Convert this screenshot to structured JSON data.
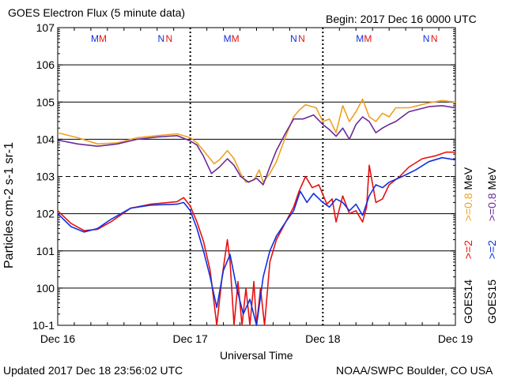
{
  "header": {
    "title": "GOES Electron Flux (5 minute data)",
    "begin": "Begin: 2017 Dec 16 0000 UTC"
  },
  "footer": {
    "updated": "Updated 2017 Dec 18 23:56:02 UTC",
    "credit": "NOAA/SWPC Boulder, CO USA"
  },
  "colors": {
    "goes14_08": "#f0a020",
    "goes15_08": "#6a2a9a",
    "goes14_2": "#e81010",
    "goes15_2": "#1030e0"
  },
  "legend": {
    "goes14": "GOES14",
    "goes15": "GOES15",
    "g14_2": ">=2",
    "g14_08": ">=0.8",
    "g15_2": ">=2",
    "g15_08": ">=0.8",
    "unit": "MeV"
  },
  "chart_data": {
    "type": "line",
    "title": "GOES Electron Flux (5 minute data)",
    "xlabel": "Universal Time",
    "ylabel": "Particles cm-2 s-1 sr-1",
    "y_scale": "log",
    "ylim": [
      0.1,
      10000000
    ],
    "y_ticks": [
      "10-1",
      "100",
      "101",
      "102",
      "103",
      "104",
      "105",
      "106",
      "107"
    ],
    "x_ticks": [
      "Dec 16",
      "Dec 17",
      "Dec 18",
      "Dec 19"
    ],
    "xlim_days": [
      0,
      3
    ],
    "threshold_line": 1000,
    "markers": {
      "M_label": "M",
      "N_label": "N",
      "M_days": [
        0.28,
        0.34,
        1.28,
        1.34,
        2.28,
        2.34
      ],
      "N_days": [
        0.78,
        0.84,
        1.78,
        1.84,
        2.78,
        2.84
      ]
    },
    "series": [
      {
        "name": "GOES14 >=0.8 MeV",
        "color": "#f0a020",
        "points": [
          [
            0,
            15000
          ],
          [
            0.15,
            11000
          ],
          [
            0.3,
            7500
          ],
          [
            0.45,
            8000
          ],
          [
            0.6,
            11000
          ],
          [
            0.75,
            12500
          ],
          [
            0.9,
            14000
          ],
          [
            1.0,
            11000
          ],
          [
            1.05,
            8000
          ],
          [
            1.1,
            5000
          ],
          [
            1.18,
            2200
          ],
          [
            1.22,
            2800
          ],
          [
            1.28,
            5000
          ],
          [
            1.33,
            3000
          ],
          [
            1.38,
            1200
          ],
          [
            1.42,
            700
          ],
          [
            1.48,
            800
          ],
          [
            1.52,
            1500
          ],
          [
            1.55,
            700
          ],
          [
            1.6,
            1200
          ],
          [
            1.65,
            2500
          ],
          [
            1.72,
            12000
          ],
          [
            1.78,
            40000
          ],
          [
            1.82,
            60000
          ],
          [
            1.87,
            85000
          ],
          [
            1.95,
            70000
          ],
          [
            2.0,
            30000
          ],
          [
            2.05,
            35000
          ],
          [
            2.1,
            15000
          ],
          [
            2.15,
            80000
          ],
          [
            2.2,
            30000
          ],
          [
            2.25,
            55000
          ],
          [
            2.3,
            120000
          ],
          [
            2.35,
            40000
          ],
          [
            2.4,
            30000
          ],
          [
            2.45,
            50000
          ],
          [
            2.5,
            40000
          ],
          [
            2.55,
            70000
          ],
          [
            2.65,
            70000
          ],
          [
            2.8,
            95000
          ],
          [
            2.9,
            110000
          ],
          [
            3.0,
            100000
          ]
        ]
      },
      {
        "name": "GOES15 >=0.8 MeV",
        "color": "#6a2a9a",
        "points": [
          [
            0,
            9500
          ],
          [
            0.15,
            7500
          ],
          [
            0.3,
            6500
          ],
          [
            0.45,
            7500
          ],
          [
            0.6,
            10000
          ],
          [
            0.75,
            11500
          ],
          [
            0.9,
            12500
          ],
          [
            1.0,
            9000
          ],
          [
            1.05,
            7000
          ],
          [
            1.1,
            3500
          ],
          [
            1.16,
            1200
          ],
          [
            1.22,
            1800
          ],
          [
            1.28,
            3000
          ],
          [
            1.33,
            2000
          ],
          [
            1.38,
            1000
          ],
          [
            1.44,
            700
          ],
          [
            1.5,
            900
          ],
          [
            1.55,
            600
          ],
          [
            1.6,
            1800
          ],
          [
            1.65,
            5000
          ],
          [
            1.72,
            15000
          ],
          [
            1.78,
            35000
          ],
          [
            1.85,
            35000
          ],
          [
            1.93,
            45000
          ],
          [
            2.0,
            25000
          ],
          [
            2.05,
            18000
          ],
          [
            2.1,
            12000
          ],
          [
            2.15,
            20000
          ],
          [
            2.2,
            10000
          ],
          [
            2.25,
            25000
          ],
          [
            2.3,
            40000
          ],
          [
            2.35,
            30000
          ],
          [
            2.4,
            15000
          ],
          [
            2.45,
            20000
          ],
          [
            2.5,
            25000
          ],
          [
            2.55,
            30000
          ],
          [
            2.65,
            55000
          ],
          [
            2.8,
            75000
          ],
          [
            2.9,
            80000
          ],
          [
            3.0,
            70000
          ]
        ]
      },
      {
        "name": "GOES14 >=2 MeV",
        "color": "#e81010",
        "points": [
          [
            0,
            120
          ],
          [
            0.1,
            55
          ],
          [
            0.2,
            35
          ],
          [
            0.3,
            38
          ],
          [
            0.4,
            60
          ],
          [
            0.55,
            140
          ],
          [
            0.7,
            180
          ],
          [
            0.9,
            210
          ],
          [
            0.95,
            270
          ],
          [
            1.0,
            160
          ],
          [
            1.05,
            60
          ],
          [
            1.1,
            18
          ],
          [
            1.15,
            3
          ],
          [
            1.2,
            0.1
          ],
          [
            1.24,
            2
          ],
          [
            1.28,
            20
          ],
          [
            1.3,
            5
          ],
          [
            1.33,
            0.1
          ],
          [
            1.36,
            1.5
          ],
          [
            1.39,
            0.1
          ],
          [
            1.42,
            1
          ],
          [
            1.45,
            0.1
          ],
          [
            1.48,
            1.5
          ],
          [
            1.5,
            0.1
          ],
          [
            1.53,
            1
          ],
          [
            1.56,
            0.1
          ],
          [
            1.6,
            5
          ],
          [
            1.65,
            20
          ],
          [
            1.72,
            60
          ],
          [
            1.78,
            150
          ],
          [
            1.82,
            400
          ],
          [
            1.87,
            1000
          ],
          [
            1.92,
            500
          ],
          [
            1.97,
            600
          ],
          [
            2.03,
            180
          ],
          [
            2.07,
            250
          ],
          [
            2.1,
            60
          ],
          [
            2.15,
            300
          ],
          [
            2.2,
            100
          ],
          [
            2.25,
            120
          ],
          [
            2.3,
            60
          ],
          [
            2.33,
            150
          ],
          [
            2.35,
            2000
          ],
          [
            2.4,
            200
          ],
          [
            2.45,
            250
          ],
          [
            2.5,
            600
          ],
          [
            2.58,
            1000
          ],
          [
            2.65,
            1800
          ],
          [
            2.75,
            3000
          ],
          [
            2.85,
            3600
          ],
          [
            2.93,
            4500
          ],
          [
            3.0,
            4500
          ]
        ]
      },
      {
        "name": "GOES15 >=2 MeV",
        "color": "#1030e0",
        "points": [
          [
            0,
            100
          ],
          [
            0.1,
            45
          ],
          [
            0.2,
            32
          ],
          [
            0.3,
            40
          ],
          [
            0.4,
            70
          ],
          [
            0.55,
            140
          ],
          [
            0.7,
            170
          ],
          [
            0.9,
            180
          ],
          [
            0.95,
            200
          ],
          [
            1.0,
            120
          ],
          [
            1.05,
            40
          ],
          [
            1.1,
            10
          ],
          [
            1.15,
            2
          ],
          [
            1.2,
            0.3
          ],
          [
            1.25,
            3
          ],
          [
            1.3,
            8
          ],
          [
            1.35,
            1
          ],
          [
            1.4,
            0.2
          ],
          [
            1.45,
            0.5
          ],
          [
            1.5,
            0.1
          ],
          [
            1.55,
            2
          ],
          [
            1.6,
            10
          ],
          [
            1.65,
            25
          ],
          [
            1.72,
            60
          ],
          [
            1.78,
            120
          ],
          [
            1.83,
            400
          ],
          [
            1.88,
            200
          ],
          [
            1.93,
            350
          ],
          [
            2.0,
            200
          ],
          [
            2.05,
            150
          ],
          [
            2.1,
            250
          ],
          [
            2.15,
            200
          ],
          [
            2.2,
            120
          ],
          [
            2.25,
            180
          ],
          [
            2.3,
            90
          ],
          [
            2.35,
            300
          ],
          [
            2.4,
            600
          ],
          [
            2.45,
            500
          ],
          [
            2.5,
            700
          ],
          [
            2.6,
            1000
          ],
          [
            2.7,
            1500
          ],
          [
            2.8,
            2500
          ],
          [
            2.9,
            3200
          ],
          [
            3.0,
            2800
          ]
        ]
      }
    ]
  }
}
